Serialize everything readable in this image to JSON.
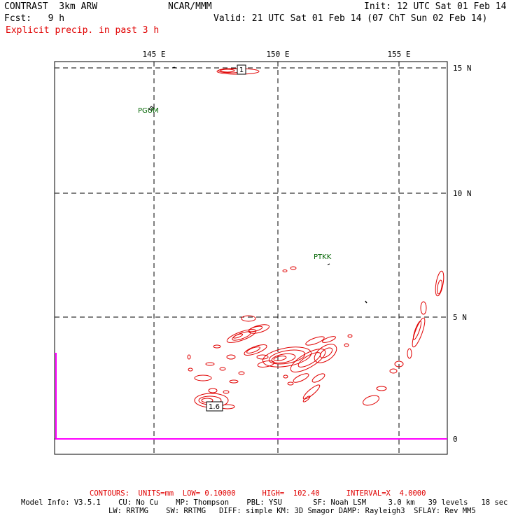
{
  "header": {
    "model": "CONTRAST  3km ARW",
    "center": "NCAR/MMM",
    "init": "Init: 12 UTC Sat 01 Feb 14",
    "fcst": "Fcst:   9 h",
    "valid": "Valid: 21 UTC Sat 01 Feb 14 (07 ChT Sun 02 Feb 14)",
    "field": "Explicit precip. in past 3 h"
  },
  "map": {
    "lon_labels": [
      "145 E",
      "150 E",
      "155 E"
    ],
    "lat_labels": [
      "15 N",
      "10 N",
      "5 N",
      "0"
    ],
    "stations": [
      {
        "id": "PGUM",
        "label": "PGUM"
      },
      {
        "id": "PTKK",
        "label": "PTKK"
      }
    ],
    "contour_labels": [
      "1",
      "1.6"
    ],
    "colors": {
      "contour": "#e00000",
      "station": "#006400",
      "grid": "#000000",
      "boundary": "#ff00ff"
    }
  },
  "footer": {
    "contours": "CONTOURS:  UNITS=mm  LOW= 0.10000      HIGH=  102.40      INTERVAL=X  4.0000",
    "model_info_1": "Model Info: V3.5.1    CU: No Cu    MP: Thompson    PBL: YSU       SF: Noah LSM     3.0 km   39 levels   18 sec",
    "model_info_2": "LW: RRTMG    SW: RRTMG   DIFF: simple KM: 3D Smagor DAMP: Rayleigh3  SFLAY: Rev MM5"
  }
}
